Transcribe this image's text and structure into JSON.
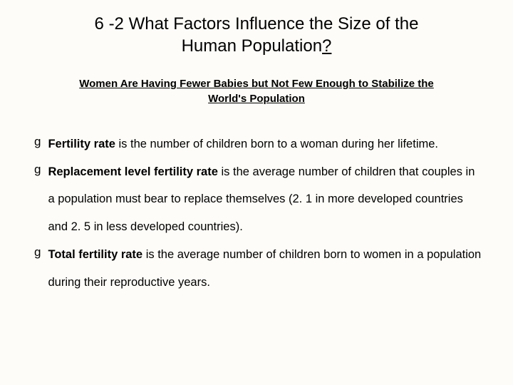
{
  "slide": {
    "title_line1": "6 -2 What Factors Influence the Size of the",
    "title_line2_pre": "Human Population",
    "title_qmark": "?",
    "subtitle": "Women Are Having Fewer Babies but Not Few Enough to Stabilize the World's Population",
    "bullets": [
      {
        "term": "Fertility rate",
        "rest": " is the number of children born to a woman during her lifetime."
      },
      {
        "term": "Replacement level fertility rate",
        "rest": " is the average number of children that couples in a population must bear to replace themselves (2. 1 in more developed countries and 2. 5 in less developed countries)."
      },
      {
        "term": "Total fertility rate",
        "rest": " is the average number of children born to women in a population during their reproductive years."
      }
    ],
    "bullet_glyph": "g",
    "colors": {
      "background": "#fdfcf8",
      "text": "#000000"
    },
    "typography": {
      "title_fontsize": 24,
      "subtitle_fontsize": 15,
      "body_fontsize": 16.5,
      "font_family": "Arial"
    }
  }
}
